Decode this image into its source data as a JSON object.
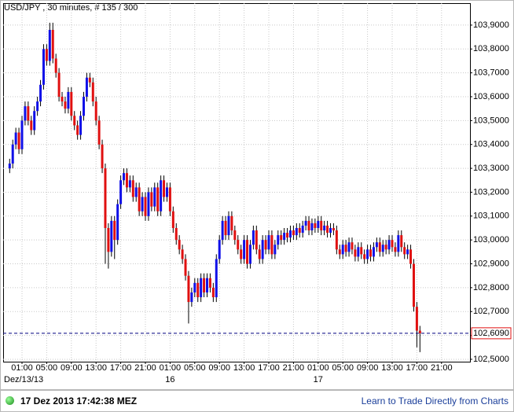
{
  "chart_data": {
    "type": "candlestick",
    "title": "USD/JPY , 30 minutes, # 135 / 300",
    "up_color": "#1010e8",
    "down_color": "#e01010",
    "grid": true,
    "ylim": [
      102.49,
      103.992
    ],
    "yticks": [
      {
        "value": 102.5,
        "label": "102,5000"
      },
      {
        "value": 102.6,
        "label": "102,6000"
      },
      {
        "value": 102.7,
        "label": "102,7000"
      },
      {
        "value": 102.8,
        "label": "102,8000"
      },
      {
        "value": 102.9,
        "label": "102,9000"
      },
      {
        "value": 103.0,
        "label": "103,0000"
      },
      {
        "value": 103.1,
        "label": "103,1000"
      },
      {
        "value": 103.2,
        "label": "103,2000"
      },
      {
        "value": 103.3,
        "label": "103,3000"
      },
      {
        "value": 103.4,
        "label": "103,4000"
      },
      {
        "value": 103.5,
        "label": "103,5000"
      },
      {
        "value": 103.6,
        "label": "103,6000"
      },
      {
        "value": 103.7,
        "label": "103,7000"
      },
      {
        "value": 103.8,
        "label": "103,8000"
      },
      {
        "value": 103.9,
        "label": "103,9000"
      }
    ],
    "last_price": {
      "value": 102.609,
      "label": "102,6090"
    },
    "categories": [
      null,
      null,
      null,
      null,
      "01:00",
      null,
      null,
      null,
      null,
      null,
      null,
      null,
      "05:00",
      null,
      null,
      null,
      null,
      null,
      null,
      null,
      "09:00",
      null,
      null,
      null,
      null,
      null,
      null,
      null,
      "13:00",
      null,
      null,
      null,
      null,
      null,
      null,
      null,
      "17:00",
      null,
      null,
      null,
      null,
      null,
      null,
      null,
      "21:00",
      null,
      null,
      null,
      null,
      null,
      null,
      null,
      "01:00",
      null,
      null,
      null,
      null,
      null,
      null,
      null,
      "05:00",
      null,
      null,
      null,
      null,
      null,
      null,
      null,
      "09:00",
      null,
      null,
      null,
      null,
      null,
      null,
      null,
      "13:00",
      null,
      null,
      null,
      null,
      null,
      null,
      null,
      "17:00",
      null,
      null,
      null,
      null,
      null,
      null,
      null,
      "21:00",
      null,
      null,
      null,
      null,
      null,
      null,
      null,
      "01:00",
      null,
      null,
      null,
      null,
      null,
      null,
      null,
      "05:00",
      null,
      null,
      null,
      null,
      null,
      null,
      null,
      "09:00",
      null,
      null,
      null,
      null,
      null,
      null,
      null,
      "13:00",
      null,
      null,
      null,
      null,
      null,
      null,
      null,
      "17:00",
      null,
      null,
      null,
      null,
      null,
      null,
      null,
      "21:00"
    ],
    "dates": [
      "Dez/13/13",
      null,
      null,
      null,
      null,
      null,
      null,
      null,
      null,
      null,
      null,
      null,
      null,
      null,
      null,
      null,
      null,
      null,
      null,
      null,
      null,
      null,
      null,
      null,
      null,
      null,
      null,
      null,
      null,
      null,
      null,
      null,
      null,
      null,
      null,
      null,
      null,
      null,
      null,
      null,
      null,
      null,
      null,
      null,
      null,
      null,
      null,
      null,
      null,
      null,
      null,
      null,
      "16",
      null,
      null,
      null,
      null,
      null,
      null,
      null,
      null,
      null,
      null,
      null,
      null,
      null,
      null,
      null,
      null,
      null,
      null,
      null,
      null,
      null,
      null,
      null,
      null,
      null,
      null,
      null,
      null,
      null,
      null,
      null,
      null,
      null,
      null,
      null,
      null,
      null,
      null,
      null,
      null,
      null,
      null,
      null,
      null,
      null,
      null,
      null,
      "17",
      null,
      null,
      null,
      null,
      null,
      null,
      null,
      null,
      null,
      null,
      null,
      null,
      null,
      null,
      null,
      null,
      null,
      null,
      null,
      null,
      null,
      null,
      null,
      null,
      null,
      null,
      null,
      null,
      null,
      null,
      null,
      null,
      null,
      null,
      null,
      null,
      null,
      null,
      null,
      null
    ],
    "open": [
      103.3,
      103.32,
      103.4,
      103.45,
      103.38,
      103.5,
      103.56,
      103.5,
      103.46,
      103.54,
      103.58,
      103.65,
      103.8,
      103.75,
      103.88,
      103.76,
      103.7,
      103.6,
      103.58,
      103.55,
      103.62,
      103.52,
      103.48,
      103.44,
      103.52,
      103.6,
      103.68,
      103.66,
      103.58,
      103.5,
      103.4,
      103.3,
      103.05,
      102.95,
      103.08,
      103.0,
      103.15,
      103.25,
      103.28,
      103.22,
      103.25,
      103.18,
      103.22,
      103.12,
      103.18,
      103.1,
      103.2,
      103.14,
      103.22,
      103.12,
      103.25,
      103.18,
      103.22,
      103.12,
      103.05,
      103.0,
      102.96,
      102.92,
      102.85,
      102.74,
      102.78,
      102.82,
      102.76,
      102.84,
      102.78,
      102.84,
      102.8,
      102.76,
      102.92,
      103.0,
      103.08,
      103.02,
      103.1,
      103.04,
      103.0,
      102.96,
      102.92,
      103.0,
      102.9,
      102.98,
      103.04,
      102.96,
      102.92,
      103.0,
      102.96,
      103.02,
      102.94,
      102.98,
      103.02,
      103.0,
      103.03,
      103.01,
      103.04,
      103.02,
      103.05,
      103.03,
      103.06,
      103.08,
      103.04,
      103.07,
      103.05,
      103.08,
      103.04,
      103.06,
      103.03,
      103.05,
      103.04,
      102.96,
      102.94,
      102.98,
      102.95,
      102.99,
      102.96,
      102.93,
      102.97,
      102.94,
      102.92,
      102.96,
      102.93,
      102.97,
      102.99,
      102.95,
      102.98,
      102.96,
      103.0,
      102.97,
      102.95,
      103.02,
      102.97,
      102.94,
      102.96,
      102.9,
      102.72,
      102.62,
      null,
      null,
      null,
      null,
      null,
      null,
      null
    ],
    "high": [
      103.34,
      103.42,
      103.47,
      103.47,
      103.52,
      103.58,
      103.58,
      103.52,
      103.56,
      103.6,
      103.67,
      103.82,
      103.82,
      103.91,
      103.91,
      103.78,
      103.72,
      103.62,
      103.6,
      103.64,
      103.64,
      103.54,
      103.5,
      103.54,
      103.62,
      103.7,
      103.7,
      103.68,
      103.6,
      103.52,
      103.42,
      103.32,
      103.07,
      103.1,
      103.1,
      103.17,
      103.27,
      103.3,
      103.3,
      103.27,
      103.27,
      103.24,
      103.24,
      103.2,
      103.2,
      103.22,
      103.22,
      103.24,
      103.24,
      103.27,
      103.27,
      103.24,
      103.24,
      103.14,
      103.07,
      103.02,
      102.98,
      102.94,
      102.87,
      102.8,
      102.84,
      102.84,
      102.86,
      102.86,
      102.86,
      102.86,
      102.82,
      102.94,
      103.02,
      103.1,
      103.1,
      103.12,
      103.12,
      103.06,
      103.02,
      102.98,
      103.02,
      103.02,
      103.0,
      103.06,
      103.06,
      102.98,
      103.02,
      103.02,
      103.04,
      103.04,
      103.0,
      103.04,
      103.04,
      103.05,
      103.05,
      103.06,
      103.06,
      103.07,
      103.07,
      103.08,
      103.1,
      103.1,
      103.09,
      103.09,
      103.1,
      103.1,
      103.08,
      103.08,
      103.07,
      103.07,
      103.06,
      102.98,
      103.0,
      103.0,
      103.01,
      103.01,
      102.98,
      102.99,
      102.99,
      102.96,
      102.98,
      102.98,
      102.99,
      103.01,
      103.01,
      103.0,
      103.0,
      103.02,
      103.02,
      102.99,
      103.04,
      103.04,
      102.99,
      102.98,
      102.98,
      102.92,
      102.74,
      102.64,
      null,
      null,
      null,
      null,
      null,
      null,
      null
    ],
    "low": [
      103.28,
      103.3,
      103.38,
      103.36,
      103.36,
      103.48,
      103.48,
      103.44,
      103.44,
      103.52,
      103.56,
      103.63,
      103.73,
      103.73,
      103.74,
      103.68,
      103.58,
      103.56,
      103.53,
      103.53,
      103.5,
      103.46,
      103.42,
      103.42,
      103.5,
      103.58,
      103.64,
      103.56,
      103.48,
      103.38,
      103.28,
      102.9,
      102.88,
      102.93,
      102.92,
      102.98,
      103.13,
      103.23,
      103.2,
      103.2,
      103.16,
      103.16,
      103.1,
      103.1,
      103.08,
      103.08,
      103.12,
      103.12,
      103.1,
      103.1,
      103.16,
      103.16,
      103.1,
      103.03,
      102.98,
      102.94,
      102.9,
      102.83,
      102.65,
      102.72,
      102.76,
      102.74,
      102.74,
      102.76,
      102.76,
      102.78,
      102.74,
      102.74,
      102.9,
      102.98,
      103.0,
      103.0,
      103.02,
      102.98,
      102.94,
      102.9,
      102.9,
      102.88,
      102.88,
      102.96,
      102.94,
      102.9,
      102.9,
      102.94,
      102.94,
      102.92,
      102.92,
      102.96,
      102.98,
      102.98,
      102.99,
      102.99,
      103.0,
      103.0,
      103.01,
      103.01,
      103.04,
      103.02,
      103.02,
      103.03,
      103.03,
      103.02,
      103.02,
      103.01,
      103.01,
      103.02,
      102.94,
      102.92,
      102.92,
      102.93,
      102.93,
      102.94,
      102.91,
      102.91,
      102.92,
      102.9,
      102.9,
      102.91,
      102.91,
      102.95,
      102.93,
      102.93,
      102.94,
      102.94,
      102.95,
      102.93,
      102.93,
      102.95,
      102.92,
      102.92,
      102.88,
      102.7,
      102.55,
      102.53,
      null,
      null,
      null,
      null,
      null,
      null,
      null
    ],
    "close": [
      103.32,
      103.4,
      103.45,
      103.38,
      103.5,
      103.56,
      103.5,
      103.46,
      103.54,
      103.58,
      103.65,
      103.8,
      103.75,
      103.88,
      103.76,
      103.7,
      103.6,
      103.58,
      103.55,
      103.62,
      103.52,
      103.48,
      103.44,
      103.52,
      103.6,
      103.68,
      103.66,
      103.58,
      103.5,
      103.4,
      103.3,
      103.05,
      102.95,
      103.08,
      103.0,
      103.15,
      103.25,
      103.28,
      103.22,
      103.25,
      103.18,
      103.22,
      103.12,
      103.18,
      103.1,
      103.2,
      103.14,
      103.22,
      103.12,
      103.25,
      103.18,
      103.22,
      103.12,
      103.05,
      103.0,
      102.96,
      102.92,
      102.85,
      102.74,
      102.78,
      102.82,
      102.76,
      102.84,
      102.78,
      102.84,
      102.8,
      102.76,
      102.92,
      103.0,
      103.08,
      103.02,
      103.1,
      103.04,
      103.0,
      102.96,
      102.92,
      103.0,
      102.9,
      102.98,
      103.04,
      102.96,
      102.92,
      103.0,
      102.96,
      103.02,
      102.94,
      102.98,
      103.02,
      103.0,
      103.03,
      103.01,
      103.04,
      103.02,
      103.05,
      103.03,
      103.06,
      103.08,
      103.04,
      103.07,
      103.05,
      103.08,
      103.04,
      103.06,
      103.03,
      103.05,
      103.04,
      102.96,
      102.94,
      102.98,
      102.95,
      102.99,
      102.96,
      102.93,
      102.97,
      102.94,
      102.92,
      102.96,
      102.93,
      102.97,
      102.99,
      102.95,
      102.98,
      102.96,
      103.0,
      102.97,
      102.95,
      103.02,
      102.97,
      102.94,
      102.96,
      102.9,
      102.72,
      102.62,
      102.609,
      null,
      null,
      null,
      null,
      null,
      null,
      null
    ]
  },
  "footer": {
    "timestamp": "17 Dez 2013 17:42:38 MEZ",
    "link": "Learn to Trade Directly from Charts"
  }
}
